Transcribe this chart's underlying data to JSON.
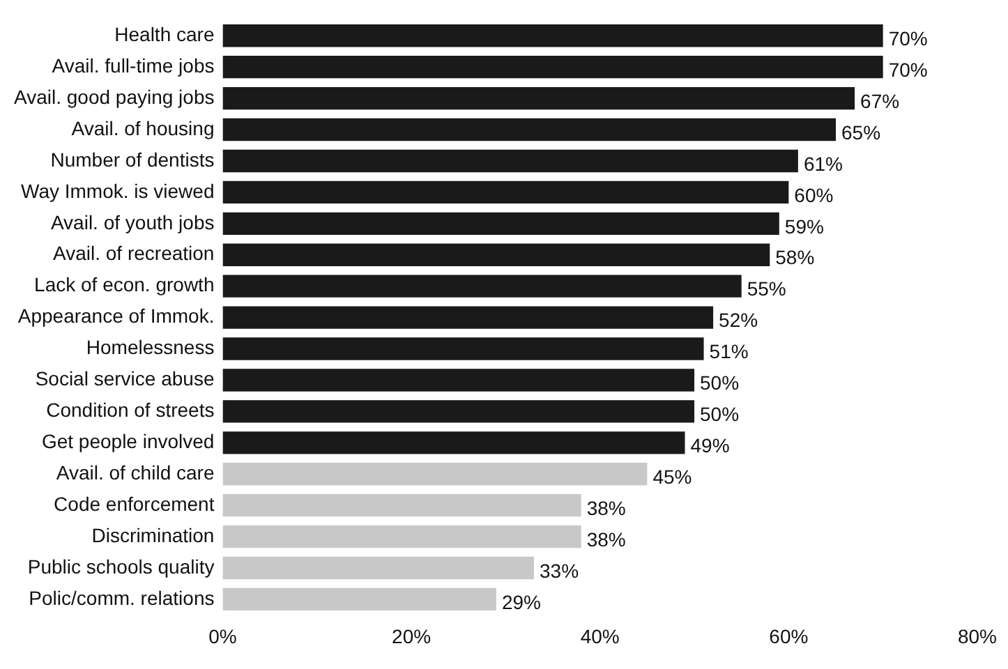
{
  "chart_data": {
    "type": "bar",
    "orientation": "horizontal",
    "categories": [
      "Health care",
      "Avail. full-time jobs",
      "Avail. good paying jobs",
      "Avail. of housing",
      "Number of dentists",
      "Way Immok. is viewed",
      "Avail. of youth jobs",
      "Avail. of recreation",
      "Lack of econ. growth",
      "Appearance of Immok.",
      "Homelessness",
      "Social service abuse",
      "Condition of streets",
      "Get people involved",
      "Avail. of child care",
      "Code enforcement",
      "Discrimination",
      "Public schools quality",
      "Polic/comm. relations"
    ],
    "values": [
      70,
      70,
      67,
      65,
      61,
      60,
      59,
      58,
      55,
      52,
      51,
      50,
      50,
      49,
      45,
      38,
      38,
      33,
      29
    ],
    "value_labels": [
      "70%",
      "70%",
      "67%",
      "65%",
      "61%",
      "60%",
      "59%",
      "58%",
      "55%",
      "52%",
      "51%",
      "50%",
      "50%",
      "49%",
      "45%",
      "38%",
      "38%",
      "33%",
      "29%"
    ],
    "colors": [
      "#1a1a1a",
      "#1a1a1a",
      "#1a1a1a",
      "#1a1a1a",
      "#1a1a1a",
      "#1a1a1a",
      "#1a1a1a",
      "#1a1a1a",
      "#1a1a1a",
      "#1a1a1a",
      "#1a1a1a",
      "#1a1a1a",
      "#1a1a1a",
      "#1a1a1a",
      "#c8c8c8",
      "#c8c8c8",
      "#c8c8c8",
      "#c8c8c8",
      "#c8c8c8"
    ],
    "xlim": [
      0,
      80
    ],
    "xticks": [
      {
        "value": 0,
        "label": "0%"
      },
      {
        "value": 20,
        "label": "20%"
      },
      {
        "value": 40,
        "label": "40%"
      },
      {
        "value": 60,
        "label": "60%"
      },
      {
        "value": 80,
        "label": "80%"
      }
    ],
    "grid": false,
    "legend": false
  }
}
